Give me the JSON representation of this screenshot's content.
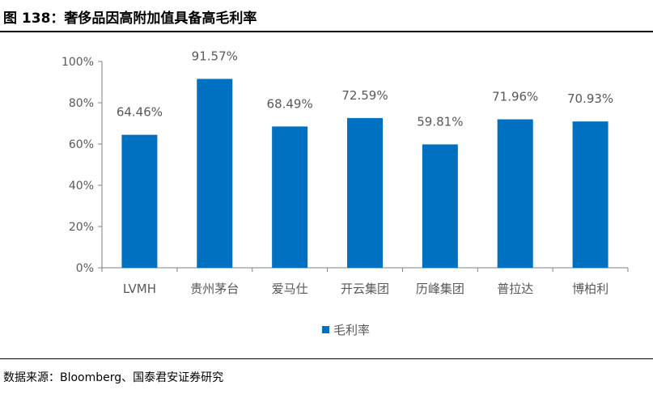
{
  "figure": {
    "title": "图 138：奢侈品因高附加值具备高毛利率",
    "source": "数据来源：Bloomberg、国泰君安证券研究"
  },
  "colors": {
    "bar": "#0070C0",
    "axis": "#808080",
    "label": "#595959"
  },
  "chart_data": {
    "type": "bar",
    "categories": [
      "LVMH",
      "贵州茅台",
      "爱马仕",
      "开云集团",
      "历峰集团",
      "普拉达",
      "博柏利"
    ],
    "series": [
      {
        "name": "毛利率",
        "values": [
          64.46,
          91.57,
          68.49,
          72.59,
          59.81,
          71.96,
          70.93
        ]
      }
    ],
    "data_labels": [
      "64.46%",
      "91.57%",
      "68.49%",
      "72.59%",
      "59.81%",
      "71.96%",
      "70.93%"
    ],
    "y_ticks": [
      "0%",
      "20%",
      "40%",
      "60%",
      "80%",
      "100%"
    ],
    "ylim": [
      0,
      100
    ],
    "grid": false,
    "legend": "bottom-center",
    "title": "",
    "xlabel": "",
    "ylabel": ""
  }
}
